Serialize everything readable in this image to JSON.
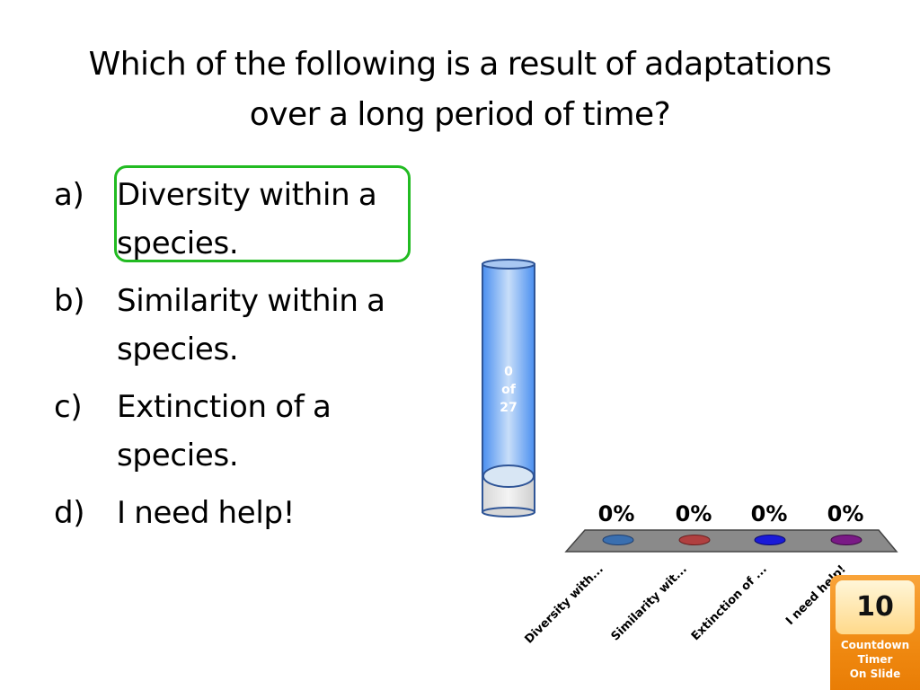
{
  "question": {
    "line1": "Which of the following is a result of adaptations",
    "line2": "over a long period of time?"
  },
  "answers": [
    {
      "letter": "a)",
      "line1": "Diversity within a",
      "line2": "species.",
      "correct": true
    },
    {
      "letter": "b)",
      "line1": "Similarity within a",
      "line2": "species.",
      "correct": false
    },
    {
      "letter": "c)",
      "line1": "Extinction of a",
      "line2": "species.",
      "correct": false
    },
    {
      "letter": "d)",
      "line1": "I need help!",
      "line2": "",
      "correct": false
    }
  ],
  "response_counter": {
    "responses": "0",
    "of": "of",
    "total": "27",
    "fill_fraction": 0
  },
  "results": {
    "labels": [
      "Diversity with...",
      "Similarity wit...",
      "Extinction of ...",
      "I need help!"
    ],
    "percents": [
      "0%",
      "0%",
      "0%",
      "0%"
    ],
    "colors": [
      "#3a6fb0",
      "#b04040",
      "#1a1ad8",
      "#7a1a86"
    ]
  },
  "timer": {
    "seconds": "10",
    "caption_line1": "Countdown",
    "caption_line2": "Timer",
    "caption_line3": "On Slide"
  },
  "colors": {
    "correct_outline": "#22bb22",
    "cylinder_blue": "#4a8ff0",
    "platform_gray": "#8a8a8a",
    "timer_orange": "#f08a12"
  }
}
